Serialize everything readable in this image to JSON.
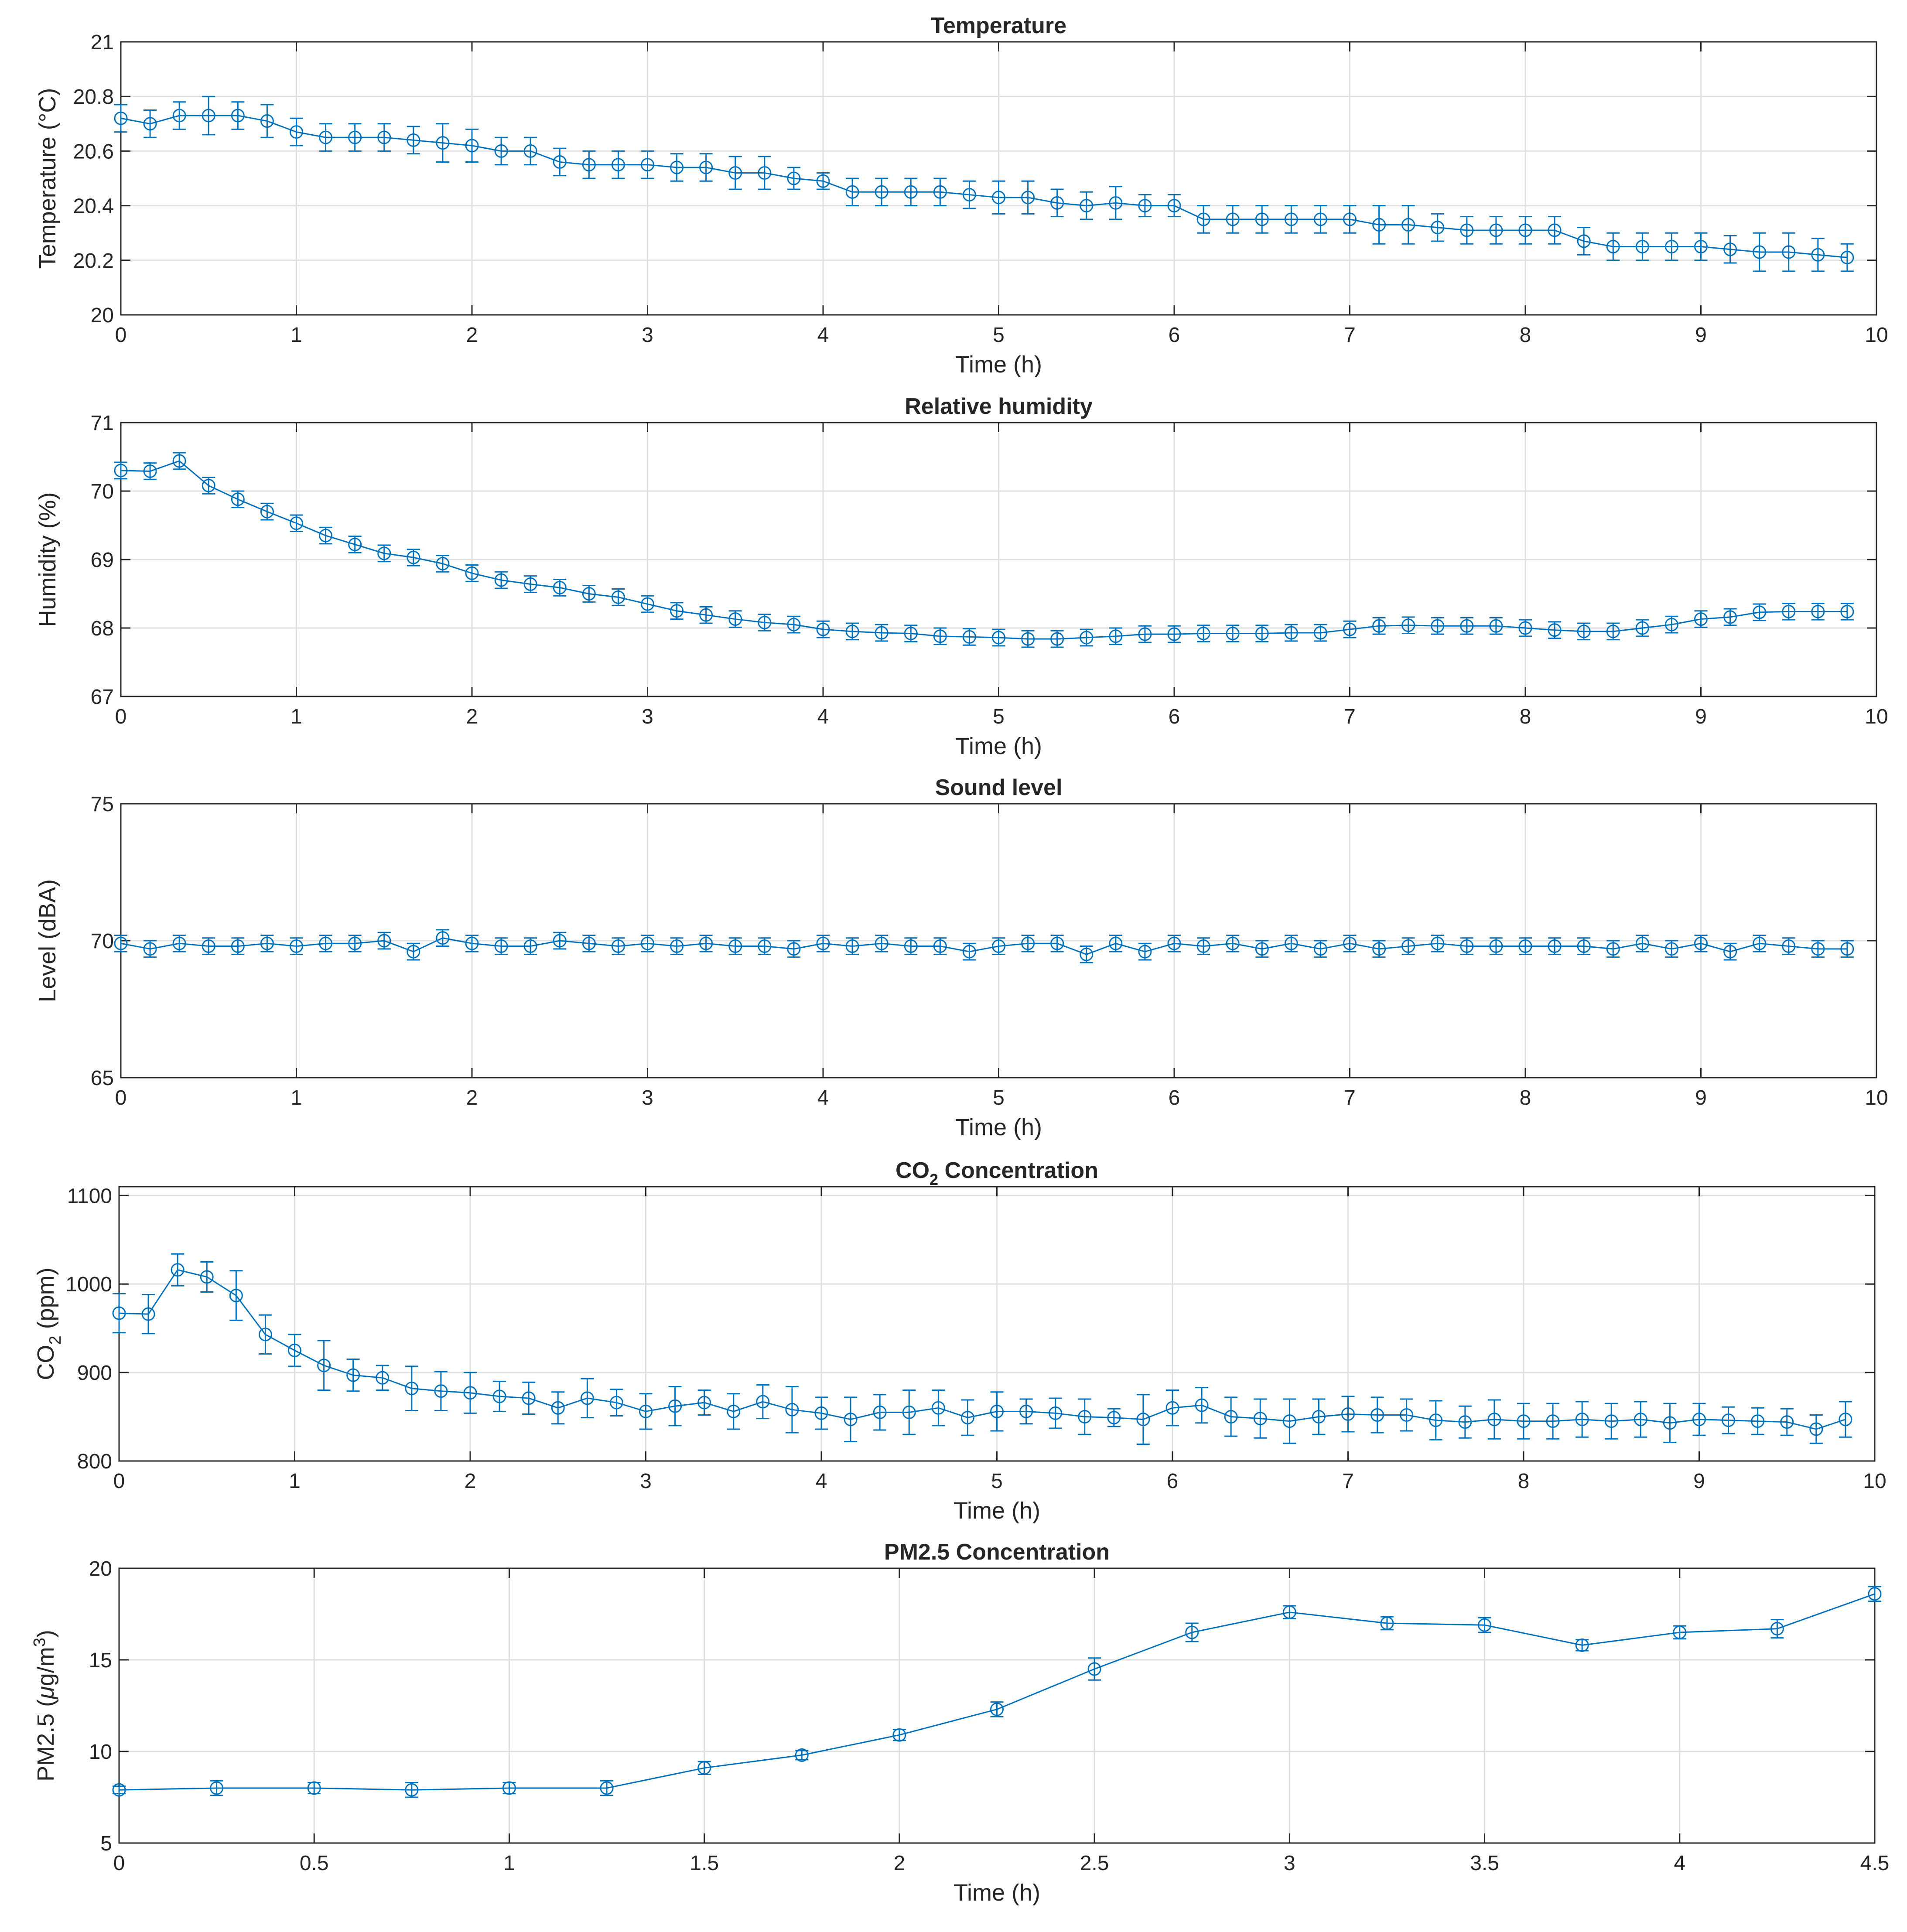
{
  "chart_data": [
    {
      "type": "line",
      "title": "Temperature",
      "xlabel": "Time (h)",
      "ylabel": "Temperature (°C)",
      "xlim": [
        0,
        10
      ],
      "ylim": [
        20,
        21
      ],
      "xticks": [
        0,
        1,
        2,
        3,
        4,
        5,
        6,
        7,
        8,
        9,
        10
      ],
      "yticks": [
        20,
        20.2,
        20.4,
        20.6,
        20.8,
        21
      ],
      "grid": true,
      "error_bars": true,
      "series": [
        {
          "name": "Temperature",
          "x": [
            0,
            0.1667,
            0.3333,
            0.5,
            0.6667,
            0.8333,
            1,
            1.1667,
            1.3333,
            1.5,
            1.6667,
            1.8333,
            2,
            2.1667,
            2.3333,
            2.5,
            2.6667,
            2.8333,
            3,
            3.1667,
            3.3333,
            3.5,
            3.6667,
            3.8333,
            4,
            4.1667,
            4.3333,
            4.5,
            4.6667,
            4.8333,
            5,
            5.1667,
            5.3333,
            5.5,
            5.6667,
            5.8333,
            6,
            6.1667,
            6.3333,
            6.5,
            6.6667,
            6.8333,
            7,
            7.1667,
            7.3333,
            7.5,
            7.6667,
            7.8333,
            8,
            8.1667,
            8.3333,
            8.5,
            8.6667,
            8.8333,
            9,
            9.1667,
            9.3333,
            9.5,
            9.6667,
            9.8333
          ],
          "y": [
            20.72,
            20.7,
            20.73,
            20.73,
            20.73,
            20.71,
            20.67,
            20.65,
            20.65,
            20.65,
            20.64,
            20.63,
            20.62,
            20.6,
            20.6,
            20.56,
            20.55,
            20.55,
            20.55,
            20.54,
            20.54,
            20.52,
            20.52,
            20.5,
            20.49,
            20.45,
            20.45,
            20.45,
            20.45,
            20.44,
            20.43,
            20.43,
            20.41,
            20.4,
            20.41,
            20.4,
            20.4,
            20.35,
            20.35,
            20.35,
            20.35,
            20.35,
            20.35,
            20.33,
            20.33,
            20.32,
            20.31,
            20.31,
            20.31,
            20.31,
            20.27,
            20.25,
            20.25,
            20.25,
            20.25,
            20.24,
            20.23,
            20.23,
            20.22,
            20.21
          ],
          "err": [
            0.05,
            0.05,
            0.05,
            0.07,
            0.05,
            0.06,
            0.05,
            0.05,
            0.05,
            0.05,
            0.05,
            0.07,
            0.06,
            0.05,
            0.05,
            0.05,
            0.05,
            0.05,
            0.05,
            0.05,
            0.05,
            0.06,
            0.06,
            0.04,
            0.03,
            0.05,
            0.05,
            0.05,
            0.05,
            0.05,
            0.06,
            0.06,
            0.05,
            0.05,
            0.06,
            0.04,
            0.04,
            0.05,
            0.05,
            0.05,
            0.05,
            0.05,
            0.05,
            0.07,
            0.07,
            0.05,
            0.05,
            0.05,
            0.05,
            0.05,
            0.05,
            0.05,
            0.05,
            0.05,
            0.05,
            0.05,
            0.07,
            0.07,
            0.06,
            0.05
          ]
        }
      ]
    },
    {
      "type": "line",
      "title": "Relative humidity",
      "xlabel": "Time (h)",
      "ylabel": "Humidity (%)",
      "xlim": [
        0,
        10
      ],
      "ylim": [
        67,
        71
      ],
      "xticks": [
        0,
        1,
        2,
        3,
        4,
        5,
        6,
        7,
        8,
        9,
        10
      ],
      "yticks": [
        67,
        68,
        69,
        70,
        71
      ],
      "grid": true,
      "error_bars": true,
      "series": [
        {
          "name": "Relative humidity",
          "x": [
            0,
            0.1667,
            0.3333,
            0.5,
            0.6667,
            0.8333,
            1,
            1.1667,
            1.3333,
            1.5,
            1.6667,
            1.8333,
            2,
            2.1667,
            2.3333,
            2.5,
            2.6667,
            2.8333,
            3,
            3.1667,
            3.3333,
            3.5,
            3.6667,
            3.8333,
            4,
            4.1667,
            4.3333,
            4.5,
            4.6667,
            4.8333,
            5,
            5.1667,
            5.3333,
            5.5,
            5.6667,
            5.8333,
            6,
            6.1667,
            6.3333,
            6.5,
            6.6667,
            6.8333,
            7,
            7.1667,
            7.3333,
            7.5,
            7.6667,
            7.8333,
            8,
            8.1667,
            8.3333,
            8.5,
            8.6667,
            8.8333,
            9,
            9.1667,
            9.3333,
            9.5,
            9.6667,
            9.8333
          ],
          "y": [
            70.3,
            70.29,
            70.44,
            70.08,
            69.88,
            69.7,
            69.53,
            69.35,
            69.22,
            69.09,
            69.03,
            68.94,
            68.8,
            68.7,
            68.64,
            68.59,
            68.5,
            68.45,
            68.35,
            68.25,
            68.19,
            68.13,
            68.08,
            68.05,
            67.98,
            67.95,
            67.93,
            67.92,
            67.88,
            67.87,
            67.86,
            67.84,
            67.84,
            67.86,
            67.88,
            67.91,
            67.91,
            67.92,
            67.92,
            67.92,
            67.93,
            67.93,
            67.98,
            68.03,
            68.04,
            68.03,
            68.03,
            68.03,
            68.0,
            67.97,
            67.95,
            67.95,
            68.0,
            68.05,
            68.13,
            68.16,
            68.23,
            68.24,
            68.24,
            68.24
          ]
        }
      ]
    },
    {
      "type": "line",
      "title": "Sound level",
      "xlabel": "Time (h)",
      "ylabel": "Level (dBA)",
      "xlim": [
        0,
        10
      ],
      "ylim": [
        65,
        75
      ],
      "xticks": [
        0,
        1,
        2,
        3,
        4,
        5,
        6,
        7,
        8,
        9,
        10
      ],
      "yticks": [
        65,
        70,
        75
      ],
      "grid": true,
      "error_bars": true,
      "series": [
        {
          "name": "Sound level",
          "x": [
            0,
            0.1667,
            0.3333,
            0.5,
            0.6667,
            0.8333,
            1,
            1.1667,
            1.3333,
            1.5,
            1.6667,
            1.8333,
            2,
            2.1667,
            2.3333,
            2.5,
            2.6667,
            2.8333,
            3,
            3.1667,
            3.3333,
            3.5,
            3.6667,
            3.8333,
            4,
            4.1667,
            4.3333,
            4.5,
            4.6667,
            4.8333,
            5,
            5.1667,
            5.3333,
            5.5,
            5.6667,
            5.8333,
            6,
            6.1667,
            6.3333,
            6.5,
            6.6667,
            6.8333,
            7,
            7.1667,
            7.3333,
            7.5,
            7.6667,
            7.8333,
            8,
            8.1667,
            8.3333,
            8.5,
            8.6667,
            8.8333,
            9,
            9.1667,
            9.3333,
            9.5,
            9.6667,
            9.8333
          ],
          "y": [
            69.9,
            69.7,
            69.9,
            69.8,
            69.8,
            69.9,
            69.8,
            69.9,
            69.9,
            70.0,
            69.6,
            70.1,
            69.9,
            69.8,
            69.8,
            70.0,
            69.9,
            69.8,
            69.9,
            69.8,
            69.9,
            69.8,
            69.8,
            69.7,
            69.9,
            69.8,
            69.9,
            69.8,
            69.8,
            69.6,
            69.8,
            69.9,
            69.9,
            69.5,
            69.9,
            69.6,
            69.9,
            69.8,
            69.9,
            69.7,
            69.9,
            69.7,
            69.9,
            69.7,
            69.8,
            69.9,
            69.8,
            69.8,
            69.8,
            69.8,
            69.8,
            69.7,
            69.9,
            69.7,
            69.9,
            69.6,
            69.9,
            69.8,
            69.7,
            69.7
          ]
        }
      ]
    },
    {
      "type": "line",
      "title": "CO",
      "title_sub": "2",
      "title_suffix": " Concentration",
      "xlabel": "Time (h)",
      "ylabel": "CO",
      "ylabel_sub": "2",
      "ylabel_suffix": " (ppm)",
      "xlim": [
        0,
        10
      ],
      "ylim": [
        800,
        1110
      ],
      "xticks": [
        0,
        1,
        2,
        3,
        4,
        5,
        6,
        7,
        8,
        9,
        10
      ],
      "yticks": [
        800,
        900,
        1000,
        1100
      ],
      "grid": true,
      "error_bars": true,
      "series": [
        {
          "name": "CO2",
          "x": [
            0,
            0.1667,
            0.3333,
            0.5,
            0.6667,
            0.8333,
            1,
            1.1667,
            1.3333,
            1.5,
            1.6667,
            1.8333,
            2,
            2.1667,
            2.3333,
            2.5,
            2.6667,
            2.8333,
            3,
            3.1667,
            3.3333,
            3.5,
            3.6667,
            3.8333,
            4,
            4.1667,
            4.3333,
            4.5,
            4.6667,
            4.8333,
            5,
            5.1667,
            5.3333,
            5.5,
            5.6667,
            5.8333,
            6,
            6.1667,
            6.3333,
            6.5,
            6.6667,
            6.8333,
            7,
            7.1667,
            7.3333,
            7.5,
            7.6667,
            7.8333,
            8,
            8.1667,
            8.3333,
            8.5,
            8.6667,
            8.8333,
            9,
            9.1667,
            9.3333,
            9.5,
            9.6667,
            9.8333
          ],
          "y": [
            967,
            966,
            1016,
            1008,
            987,
            943,
            925,
            908,
            897,
            894,
            882,
            879,
            877,
            873,
            871,
            860,
            871,
            866,
            856,
            862,
            866,
            856,
            867,
            858,
            854,
            847,
            855,
            855,
            860,
            849,
            856,
            856,
            854,
            850,
            849,
            847,
            860,
            863,
            850,
            848,
            845,
            850,
            853,
            852,
            852,
            846,
            844,
            847,
            845,
            845,
            847,
            845,
            847,
            843,
            847,
            846,
            845,
            844,
            836,
            847
          ],
          "err": [
            22,
            22,
            18,
            17,
            28,
            22,
            18,
            28,
            18,
            14,
            25,
            22,
            23,
            17,
            18,
            18,
            22,
            15,
            20,
            22,
            14,
            20,
            19,
            26,
            18,
            25,
            20,
            25,
            20,
            20,
            22,
            14,
            17,
            20,
            10,
            28,
            20,
            20,
            22,
            22,
            25,
            20,
            20,
            20,
            18,
            22,
            18,
            22,
            20,
            20,
            20,
            20,
            20,
            22,
            18,
            15,
            15,
            15,
            16,
            20
          ]
        }
      ]
    },
    {
      "type": "line",
      "title": "PM2.5 Concentration",
      "xlabel": "Time (h)",
      "ylabel": "PM2.5 (",
      "ylabel_mu": "μ",
      "ylabel_unit": "g/m",
      "ylabel_sup": "3",
      "ylabel_suffix": ")",
      "xlim": [
        0,
        4.5
      ],
      "ylim": [
        5,
        20
      ],
      "xticks": [
        0,
        0.5,
        1,
        1.5,
        2,
        2.5,
        3,
        3.5,
        4,
        4.5
      ],
      "yticks": [
        5,
        10,
        15,
        20
      ],
      "grid": true,
      "error_bars": true,
      "series": [
        {
          "name": "PM2.5",
          "x": [
            0,
            0.25,
            0.5,
            0.75,
            1,
            1.25,
            1.5,
            1.75,
            2,
            2.25,
            2.5,
            2.75,
            3,
            3.25,
            3.5,
            3.75,
            4,
            4.25,
            4.5
          ],
          "y": [
            7.9,
            8.0,
            8.0,
            7.9,
            8.0,
            8.0,
            9.1,
            9.8,
            10.9,
            12.3,
            14.5,
            16.5,
            17.6,
            17.0,
            16.9,
            15.8,
            16.5,
            16.7,
            18.6
          ],
          "err": [
            0.2,
            0.4,
            0.3,
            0.4,
            0.3,
            0.4,
            0.35,
            0.25,
            0.3,
            0.4,
            0.6,
            0.5,
            0.35,
            0.35,
            0.4,
            0.3,
            0.35,
            0.5,
            0.4
          ]
        }
      ]
    }
  ],
  "colors": {
    "series": "#0072bd",
    "axes": "#262626",
    "grid": "#dfdfdf"
  }
}
